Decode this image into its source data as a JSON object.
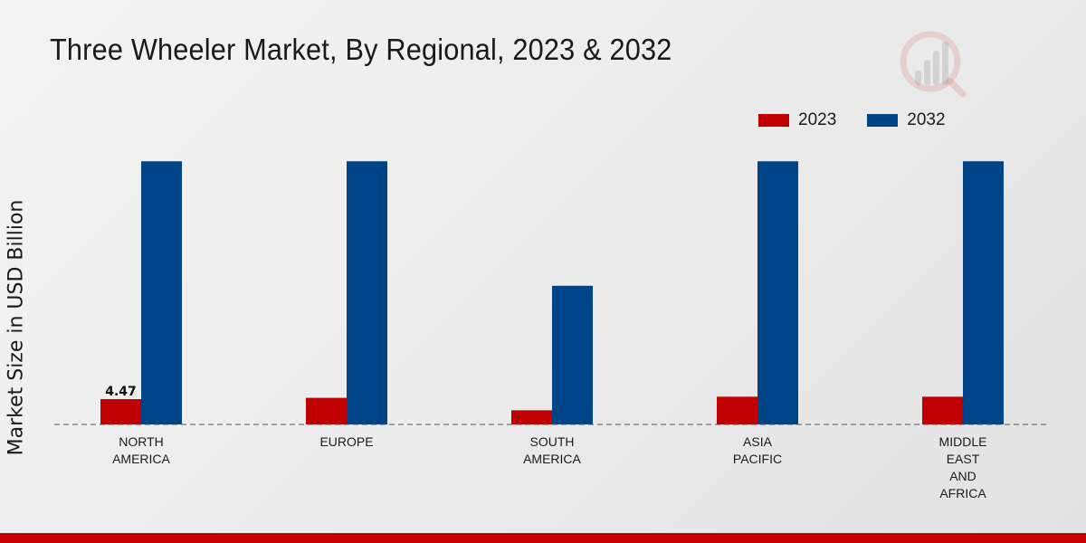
{
  "title": "Three Wheeler Market, By Regional, 2023 & 2032",
  "legend": [
    {
      "label": "2023",
      "color": "#c00000"
    },
    {
      "label": "2032",
      "color": "#004488"
    }
  ],
  "chart_data": {
    "type": "bar",
    "title": "Three Wheeler Market, By Regional, 2023 & 2032",
    "xlabel": "",
    "ylabel": "Market Size in USD Billion",
    "categories": [
      [
        "NORTH",
        "AMERICA"
      ],
      [
        "EUROPE"
      ],
      [
        "SOUTH",
        "AMERICA"
      ],
      [
        "ASIA",
        "PACIFIC"
      ],
      [
        "MIDDLE",
        "EAST",
        "AND",
        "AFRICA"
      ]
    ],
    "series": [
      {
        "name": "2023",
        "color": "#c00000",
        "values": [
          4.47,
          4.7,
          2.5,
          4.9,
          4.9
        ]
      },
      {
        "name": "2032",
        "color": "#004488",
        "values": [
          46.5,
          46.5,
          24.5,
          46.5,
          46.5
        ]
      }
    ],
    "data_labels": [
      {
        "series": 0,
        "index": 0,
        "text": "4.47"
      }
    ],
    "ylim": [
      0,
      75
    ],
    "grid": false,
    "legend_position": "top-right",
    "baseline": "dashed"
  },
  "colors": {
    "accent_bar": "#c60000"
  }
}
